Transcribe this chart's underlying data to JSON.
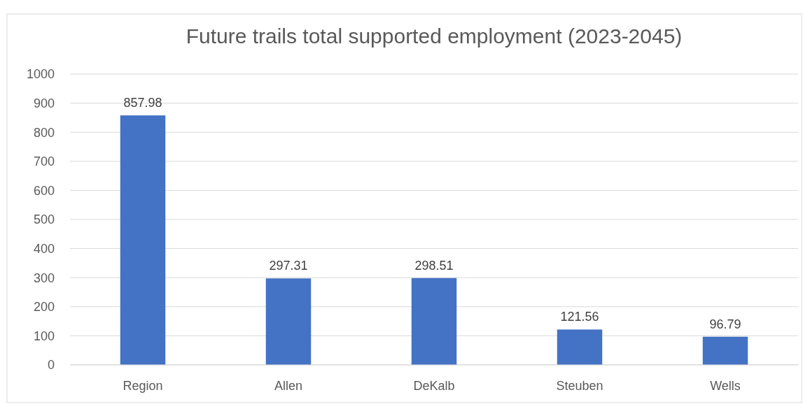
{
  "chart_data": {
    "type": "bar",
    "title": "Future trails total supported employment (2023-2045)",
    "categories": [
      "Region",
      "Allen",
      "DeKalb",
      "Steuben",
      "Wells"
    ],
    "values": [
      857.98,
      297.31,
      298.51,
      121.56,
      96.79
    ],
    "color": "#4472c4",
    "ylim": [
      0,
      1000
    ],
    "yticks": [
      0,
      100,
      200,
      300,
      400,
      500,
      600,
      700,
      800,
      900,
      1000
    ],
    "grid": "y",
    "data_labels": true
  }
}
